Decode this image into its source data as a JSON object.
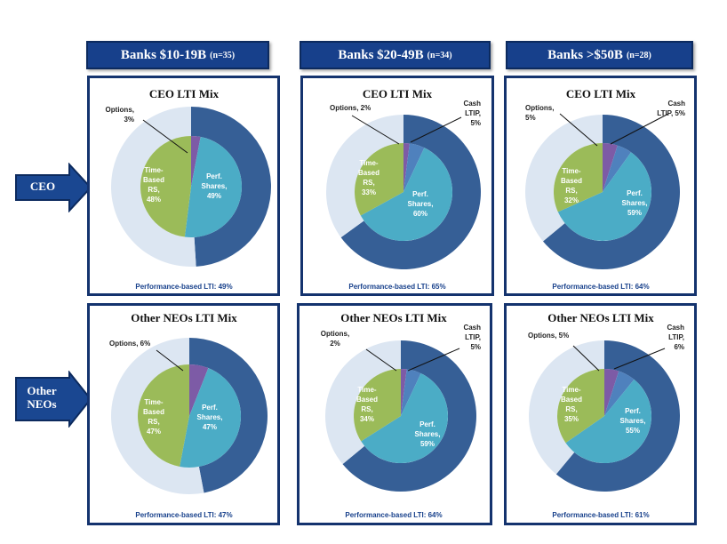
{
  "columns": [
    {
      "title": "Banks $10-19B",
      "n": "(n=35)"
    },
    {
      "title": "Banks $20-49B",
      "n": "(n=34)"
    },
    {
      "title": "Banks >$50B",
      "n": "(n=28)"
    }
  ],
  "rows": [
    {
      "label": "CEO"
    },
    {
      "label": "Other NEOs"
    }
  ],
  "colors": {
    "options": "#7d5ba6",
    "perf_shares": "#4bacc6",
    "time_rs": "#9bbb59",
    "cash_ltip": "#4f81bd",
    "outer_perf": "#365f96",
    "outer_other": "#dce6f2",
    "header_blue": "#17408b"
  },
  "chart_data": [
    {
      "type": "pie",
      "title": "CEO LTI Mix",
      "footer": "Performance-based LTI: 49%",
      "slices": [
        {
          "name": "Options",
          "value": 3,
          "label": [
            "Options,",
            "3%"
          ]
        },
        {
          "name": "Perf. Shares",
          "value": 49,
          "label": [
            "Perf.",
            "Shares,",
            "49%"
          ]
        },
        {
          "name": "Time-Based RS",
          "value": 48,
          "label": [
            "Time-",
            "Based",
            "RS,",
            "48%"
          ]
        }
      ],
      "performance_based": 49
    },
    {
      "type": "pie",
      "title": "CEO LTI Mix",
      "footer": "Performance-based LTI: 65%",
      "slices": [
        {
          "name": "Options",
          "value": 2,
          "label": [
            "Options, 2%"
          ]
        },
        {
          "name": "Cash LTIP",
          "value": 5,
          "label": [
            "Cash",
            "LTIP,",
            "5%"
          ]
        },
        {
          "name": "Perf. Shares",
          "value": 60,
          "label": [
            "Perf.",
            "Shares,",
            "60%"
          ]
        },
        {
          "name": "Time-Based RS",
          "value": 33,
          "label": [
            "Time-",
            "Based",
            "RS,",
            "33%"
          ]
        }
      ],
      "performance_based": 65
    },
    {
      "type": "pie",
      "title": "CEO LTI Mix",
      "footer": "Performance-based LTI: 64%",
      "slices": [
        {
          "name": "Options",
          "value": 5,
          "label": [
            "Options,",
            "5%"
          ]
        },
        {
          "name": "Cash LTIP",
          "value": 5,
          "label": [
            "Cash",
            "LTIP, 5%"
          ]
        },
        {
          "name": "Perf. Shares",
          "value": 59,
          "label": [
            "Perf.",
            "Shares,",
            "59%"
          ]
        },
        {
          "name": "Time-Based RS",
          "value": 32,
          "label": [
            "Time-",
            "Based",
            "RS,",
            "32%"
          ]
        }
      ],
      "performance_based": 64
    },
    {
      "type": "pie",
      "title": "Other NEOs LTI Mix",
      "footer": "Performance-based LTI: 47%",
      "slices": [
        {
          "name": "Options",
          "value": 6,
          "label": [
            "Options, 6%"
          ]
        },
        {
          "name": "Perf. Shares",
          "value": 47,
          "label": [
            "Perf.",
            "Shares,",
            "47%"
          ]
        },
        {
          "name": "Time-Based RS",
          "value": 47,
          "label": [
            "Time-",
            "Based",
            "RS,",
            "47%"
          ]
        }
      ],
      "performance_based": 47
    },
    {
      "type": "pie",
      "title": "Other NEOs LTI Mix",
      "footer": "Performance-based LTI: 64%",
      "slices": [
        {
          "name": "Options",
          "value": 2,
          "label": [
            "Options,",
            "2%"
          ]
        },
        {
          "name": "Cash LTIP",
          "value": 5,
          "label": [
            "Cash",
            "LTIP,",
            "5%"
          ]
        },
        {
          "name": "Perf. Shares",
          "value": 59,
          "label": [
            "Perf.",
            "Shares,",
            "59%"
          ]
        },
        {
          "name": "Time-Based RS",
          "value": 34,
          "label": [
            "Time-",
            "Based",
            "RS,",
            "34%"
          ]
        }
      ],
      "performance_based": 64
    },
    {
      "type": "pie",
      "title": "Other NEOs LTI Mix",
      "footer": "Performance-based LTI: 61%",
      "slices": [
        {
          "name": "Options",
          "value": 5,
          "label": [
            "Options, 5%"
          ]
        },
        {
          "name": "Cash LTIP",
          "value": 6,
          "label": [
            "Cash",
            "LTIP,",
            "6%"
          ]
        },
        {
          "name": "Perf. Shares",
          "value": 55,
          "label": [
            "Perf.",
            "Shares,",
            "55%"
          ]
        },
        {
          "name": "Time-Based RS",
          "value": 35,
          "label": [
            "Time-",
            "Based",
            "RS,",
            "35%"
          ]
        }
      ],
      "performance_based": 61
    }
  ]
}
